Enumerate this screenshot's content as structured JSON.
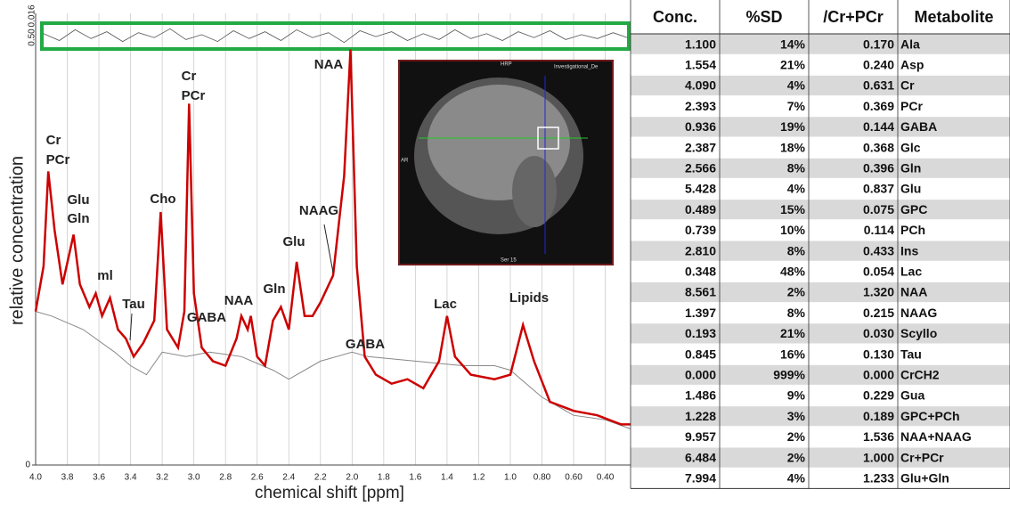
{
  "chart_data": {
    "type": "line",
    "ylabel": "relative concentration",
    "xlabel": "chemical shift [ppm]",
    "xlim": [
      4.0,
      0.24
    ],
    "ylim": [
      0,
      1
    ],
    "xticks": [
      {
        "value": 4,
        "label": "4.0"
      },
      3.8,
      3.6,
      3.4,
      3.2,
      {
        "value": 3,
        "label": "3.0"
      },
      2.8,
      2.6,
      2.4,
      2.2,
      {
        "value": 2,
        "label": "2.0"
      },
      1.8,
      1.6,
      1.4,
      1.2,
      {
        "value": 1,
        "label": "1.0"
      },
      {
        "value": 0.8,
        "label": "0.80"
      },
      {
        "value": 0.6,
        "label": "0.60"
      },
      {
        "value": 0.4,
        "label": "0.40"
      }
    ],
    "yticks": [
      0
    ],
    "grid": true,
    "series": [
      {
        "color": "#888888",
        "x": [
          4.0,
          3.9,
          3.7,
          3.5,
          3.4,
          3.3,
          3.2,
          3.05,
          2.9,
          2.7,
          2.5,
          2.4,
          2.2,
          2.0,
          1.9,
          1.6,
          1.3,
          1.1,
          1.0,
          0.8,
          0.6,
          0.4,
          0.24
        ],
        "values": [
          0.34,
          0.33,
          0.3,
          0.25,
          0.22,
          0.2,
          0.25,
          0.24,
          0.25,
          0.24,
          0.21,
          0.19,
          0.23,
          0.25,
          0.24,
          0.23,
          0.22,
          0.22,
          0.21,
          0.15,
          0.11,
          0.1,
          0.08
        ]
      },
      {
        "color": "#cc0000",
        "x": [
          4.0,
          3.95,
          3.92,
          3.88,
          3.83,
          3.76,
          3.72,
          3.66,
          3.62,
          3.58,
          3.53,
          3.48,
          3.43,
          3.38,
          3.32,
          3.25,
          3.21,
          3.17,
          3.1,
          3.06,
          3.03,
          3.0,
          2.95,
          2.88,
          2.8,
          2.73,
          2.7,
          2.66,
          2.64,
          2.6,
          2.55,
          2.5,
          2.45,
          2.4,
          2.35,
          2.3,
          2.25,
          2.2,
          2.12,
          2.05,
          2.01,
          1.97,
          1.92,
          1.85,
          1.75,
          1.65,
          1.55,
          1.45,
          1.4,
          1.35,
          1.25,
          1.1,
          1.0,
          0.92,
          0.85,
          0.75,
          0.6,
          0.45,
          0.3,
          0.24
        ],
        "values": [
          0.34,
          0.44,
          0.65,
          0.52,
          0.4,
          0.51,
          0.4,
          0.35,
          0.38,
          0.33,
          0.37,
          0.3,
          0.28,
          0.24,
          0.27,
          0.32,
          0.56,
          0.3,
          0.26,
          0.34,
          0.8,
          0.38,
          0.26,
          0.23,
          0.22,
          0.28,
          0.33,
          0.3,
          0.33,
          0.24,
          0.22,
          0.32,
          0.35,
          0.3,
          0.45,
          0.33,
          0.33,
          0.36,
          0.42,
          0.64,
          0.92,
          0.44,
          0.24,
          0.2,
          0.18,
          0.19,
          0.17,
          0.23,
          0.33,
          0.24,
          0.2,
          0.19,
          0.2,
          0.31,
          0.23,
          0.14,
          0.12,
          0.11,
          0.09,
          0.09
        ]
      }
    ],
    "residual": {
      "color": "#555555",
      "ylim": [
        -1,
        1
      ],
      "x": [
        3.95,
        3.85,
        3.75,
        3.65,
        3.55,
        3.45,
        3.35,
        3.25,
        3.15,
        3.05,
        2.95,
        2.85,
        2.75,
        2.65,
        2.55,
        2.45,
        2.35,
        2.25,
        2.15,
        2.05,
        1.95,
        1.85,
        1.75,
        1.65,
        1.55,
        1.45,
        1.35,
        1.25,
        1.15,
        1.05,
        0.95,
        0.85,
        0.75,
        0.65,
        0.55,
        0.45,
        0.35,
        0.26
      ],
      "values": [
        0.2,
        -0.5,
        0.6,
        -0.3,
        0.4,
        -0.6,
        0.3,
        -0.2,
        0.7,
        -0.4,
        0.1,
        -0.6,
        0.5,
        -0.3,
        0.4,
        -0.5,
        0.6,
        -0.2,
        0.3,
        -0.7,
        0.5,
        -0.1,
        0.4,
        -0.5,
        0.2,
        -0.4,
        0.6,
        -0.3,
        0.2,
        -0.5,
        0.4,
        -0.2,
        0.5,
        -0.4,
        0.1,
        -0.3,
        0.3,
        -0.2
      ]
    },
    "residual_labels": [
      "0.50",
      "0.016"
    ],
    "annotations": [
      "Cr",
      "PCr",
      "Glu",
      "Gln",
      "ml",
      "Tau",
      "Cho",
      "Cr",
      "PCr",
      "NAA",
      "GABA",
      "NAA",
      "Gln",
      "Glu",
      "NAAG",
      "GABA",
      "Lac",
      "Lipids"
    ]
  },
  "table": {
    "header": [
      "Conc.",
      "%SD",
      "/Cr+PCr",
      "Metabolite"
    ],
    "rows": [
      [
        "1.100",
        "14%",
        "0.170",
        "Ala"
      ],
      [
        "1.554",
        "21%",
        "0.240",
        "Asp"
      ],
      [
        "4.090",
        "4%",
        "0.631",
        "Cr"
      ],
      [
        "2.393",
        "7%",
        "0.369",
        "PCr"
      ],
      [
        "0.936",
        "19%",
        "0.144",
        "GABA"
      ],
      [
        "2.387",
        "18%",
        "0.368",
        "Glc"
      ],
      [
        "2.566",
        "8%",
        "0.396",
        "Gln"
      ],
      [
        "5.428",
        "4%",
        "0.837",
        "Glu"
      ],
      [
        "0.489",
        "15%",
        "0.075",
        "GPC"
      ],
      [
        "0.739",
        "10%",
        "0.114",
        "PCh"
      ],
      [
        "2.810",
        "8%",
        "0.433",
        "Ins"
      ],
      [
        "0.348",
        "48%",
        "0.054",
        "Lac"
      ],
      [
        "8.561",
        "2%",
        "1.320",
        "NAA"
      ],
      [
        "1.397",
        "8%",
        "0.215",
        "NAAG"
      ],
      [
        "0.193",
        "21%",
        "0.030",
        "Scyllo"
      ],
      [
        "0.845",
        "16%",
        "0.130",
        "Tau"
      ],
      [
        "0.000",
        "999%",
        "0.000",
        "CrCH2"
      ],
      [
        "1.486",
        "9%",
        "0.229",
        "Gua"
      ],
      [
        "1.228",
        "3%",
        "0.189",
        "GPC+PCh"
      ],
      [
        "9.957",
        "2%",
        "1.536",
        "NAA+NAAG"
      ],
      [
        "6.484",
        "2%",
        "1.000",
        "Cr+PCr"
      ],
      [
        "7.994",
        "4%",
        "1.233",
        "Glu+Gln"
      ]
    ]
  },
  "inset": {
    "texts": [
      "HRP",
      "Investigational_De",
      "AR",
      "Ser 15"
    ]
  }
}
